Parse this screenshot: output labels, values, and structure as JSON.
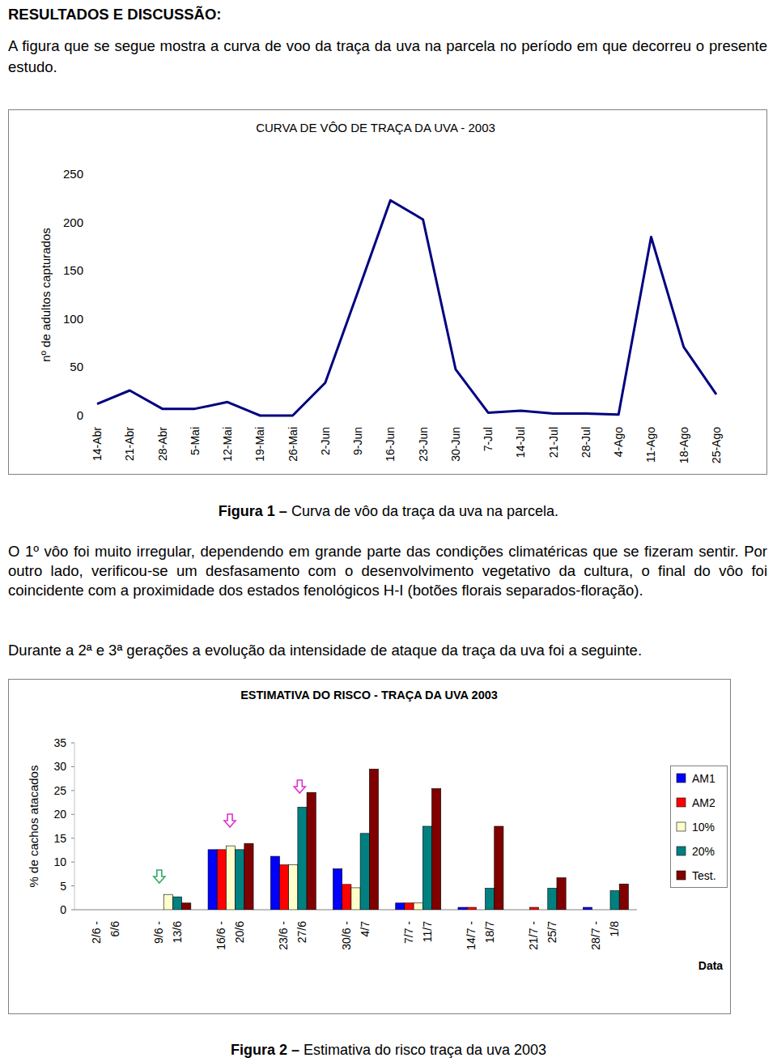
{
  "document": {
    "heading": "RESULTADOS E DISCUSSÃO:",
    "intro": "A figura que se segue mostra a curva de voo da traça da uva na parcela no período em que decorreu o presente estudo.",
    "figure1_caption": {
      "label": "Figura 1 –",
      "text": "Curva de vôo da traça da uva na parcela."
    },
    "paragraph1": "O 1º vôo foi muito irregular, dependendo em grande parte das condições climatéricas que se fizeram sentir. Por outro lado, verificou-se um desfasamento com o desenvolvimento vegetativo da cultura, o final do vôo foi coincidente com a proximidade dos estados fenológicos H-I (botões florais separados-floração).",
    "paragraph2": "Durante a 2ª e 3ª gerações a evolução da intensidade de ataque da traça da uva foi a seguinte.",
    "figure2_caption": {
      "label": "Figura 2 –",
      "text": "Estimativa do risco traça da uva 2003"
    }
  },
  "chart_data": [
    {
      "type": "line",
      "title": "CURVA DE VÔO DE TRAÇA DA UVA - 2003",
      "y_label": "nº de adultos capturados",
      "categories": [
        "14-Abr",
        "21-Abr",
        "28-Abr",
        "5-Mai",
        "12-Mai",
        "19-Mai",
        "26-Mai",
        "2-Jun",
        "9-Jun",
        "16-Jun",
        "23-Jun",
        "30-Jun",
        "7-Jul",
        "14-Jul",
        "21-Jul",
        "28-Jul",
        "4-Ago",
        "11-Ago",
        "18-Ago",
        "25-Ago"
      ],
      "values": [
        12,
        26,
        7,
        7,
        14,
        0,
        0,
        34,
        128,
        223,
        203,
        48,
        3,
        5,
        2,
        2,
        1,
        185,
        71,
        22
      ],
      "color": "#000080",
      "ylim": [
        0,
        250
      ],
      "yticks": [
        0,
        50,
        100,
        150,
        200,
        250
      ],
      "grid": false
    },
    {
      "type": "bar",
      "title": "ESTIMATIVA DO RISCO - TRAÇA DA UVA 2003",
      "y_label": "% de cachos atacados",
      "x_label": "Data",
      "categories": [
        "2/6 - 6/6",
        "9/6 - 13/6",
        "16/6 - 20/6",
        "23/6 - 27/6",
        "30/6 - 4/7",
        "7/7 - 11/7",
        "14/7 - 18/7",
        "21/7 - 25/7",
        "28/7 - 1/8"
      ],
      "series": [
        {
          "name": "AM1",
          "color": "#0000ff",
          "values": [
            0,
            0,
            12.6,
            11.2,
            8.6,
            1.4,
            0.5,
            0,
            0.5
          ]
        },
        {
          "name": "AM2",
          "color": "#ff0000",
          "values": [
            0,
            0,
            12.6,
            9.4,
            5.3,
            1.4,
            0.5,
            0.5,
            0
          ]
        },
        {
          "name": "10%",
          "color": "#ffffcc",
          "values": [
            0,
            3.2,
            13.4,
            9.4,
            4.6,
            1.4,
            0,
            0,
            0
          ]
        },
        {
          "name": "20%",
          "color": "#008080",
          "values": [
            0,
            2.7,
            12.6,
            21.5,
            16,
            17.5,
            4.5,
            4.5,
            4
          ]
        },
        {
          "name": "Test.",
          "color": "#800000",
          "values": [
            0,
            1.4,
            13.9,
            24.6,
            29.5,
            25.4,
            17.5,
            6.7,
            5.4
          ]
        }
      ],
      "ylim": [
        0,
        35
      ],
      "yticks": [
        0,
        5,
        10,
        15,
        20,
        25,
        30,
        35
      ],
      "grid": false,
      "legend": "right"
    }
  ]
}
